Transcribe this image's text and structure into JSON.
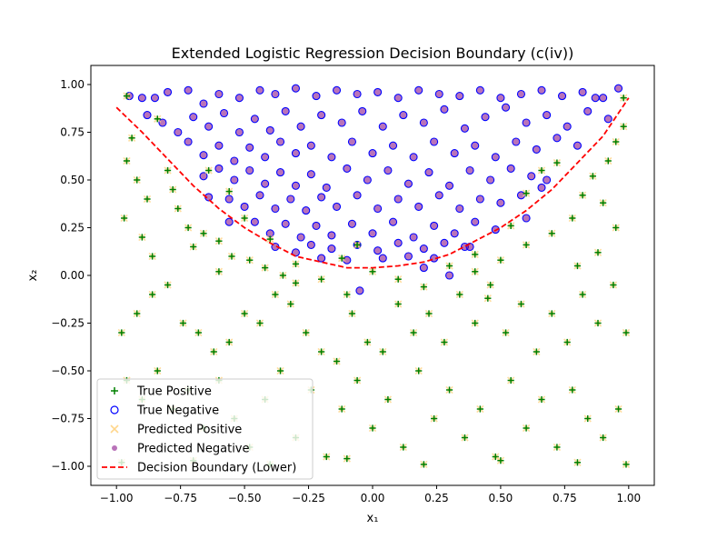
{
  "chart_data": {
    "type": "scatter",
    "title": "Extended Logistic Regression Decision Boundary (c(iv))",
    "xlabel": "x₁",
    "ylabel": "x₂",
    "xlim": [
      -1.1,
      1.1
    ],
    "ylim": [
      -1.1,
      1.1
    ],
    "xticks": [
      "−1.00",
      "−0.75",
      "−0.50",
      "−0.25",
      "0.00",
      "0.25",
      "0.50",
      "0.75",
      "1.00"
    ],
    "yticks": [
      "−1.00",
      "−0.75",
      "−0.50",
      "−0.25",
      "0.00",
      "0.25",
      "0.50",
      "0.75",
      "1.00"
    ],
    "grid": false,
    "legend_position": "lower-left",
    "legend": [
      {
        "label": "True Positive",
        "marker": "plus",
        "color": "#008000"
      },
      {
        "label": "True Negative",
        "marker": "hollow-circle",
        "color": "#0000ff"
      },
      {
        "label": "Predicted Positive",
        "marker": "x",
        "color": "#ffd27f"
      },
      {
        "label": "Predicted Negative",
        "marker": "dot",
        "color": "#7f007f"
      },
      {
        "label": "Decision Boundary (Lower)",
        "marker": "dashed-line",
        "color": "#ff0000"
      }
    ],
    "boundary": {
      "name": "Decision Boundary (Lower)",
      "x": [
        -1.0,
        -0.9,
        -0.8,
        -0.7,
        -0.6,
        -0.5,
        -0.4,
        -0.3,
        -0.2,
        -0.1,
        0.0,
        0.1,
        0.2,
        0.3,
        0.4,
        0.5,
        0.6,
        0.7,
        0.8,
        0.9,
        1.0
      ],
      "y": [
        0.88,
        0.75,
        0.61,
        0.47,
        0.35,
        0.25,
        0.17,
        0.1,
        0.07,
        0.04,
        0.04,
        0.05,
        0.07,
        0.11,
        0.18,
        0.25,
        0.34,
        0.45,
        0.59,
        0.73,
        0.93
      ]
    },
    "series": [
      {
        "name": "True Negative",
        "points": [
          [
            -0.95,
            0.94
          ],
          [
            -0.9,
            0.93
          ],
          [
            -0.85,
            0.93
          ],
          [
            -0.8,
            0.96
          ],
          [
            -0.72,
            0.97
          ],
          [
            -0.66,
            0.9
          ],
          [
            -0.6,
            0.95
          ],
          [
            -0.52,
            0.93
          ],
          [
            -0.44,
            0.97
          ],
          [
            -0.38,
            0.95
          ],
          [
            -0.3,
            0.98
          ],
          [
            -0.22,
            0.94
          ],
          [
            -0.14,
            0.97
          ],
          [
            -0.06,
            0.95
          ],
          [
            0.02,
            0.96
          ],
          [
            0.1,
            0.93
          ],
          [
            0.18,
            0.97
          ],
          [
            0.26,
            0.95
          ],
          [
            0.34,
            0.94
          ],
          [
            0.42,
            0.97
          ],
          [
            0.5,
            0.93
          ],
          [
            0.58,
            0.95
          ],
          [
            0.66,
            0.97
          ],
          [
            0.74,
            0.94
          ],
          [
            0.82,
            0.96
          ],
          [
            0.9,
            0.93
          ],
          [
            0.96,
            0.98
          ],
          [
            -0.88,
            0.84
          ],
          [
            -0.82,
            0.8
          ],
          [
            -0.76,
            0.75
          ],
          [
            -0.7,
            0.83
          ],
          [
            -0.64,
            0.78
          ],
          [
            -0.58,
            0.85
          ],
          [
            -0.52,
            0.75
          ],
          [
            -0.46,
            0.82
          ],
          [
            -0.4,
            0.76
          ],
          [
            -0.34,
            0.86
          ],
          [
            -0.28,
            0.78
          ],
          [
            -0.2,
            0.84
          ],
          [
            -0.12,
            0.8
          ],
          [
            -0.04,
            0.86
          ],
          [
            0.04,
            0.78
          ],
          [
            0.12,
            0.84
          ],
          [
            0.2,
            0.8
          ],
          [
            0.28,
            0.87
          ],
          [
            0.36,
            0.77
          ],
          [
            0.44,
            0.83
          ],
          [
            0.52,
            0.88
          ],
          [
            0.6,
            0.8
          ],
          [
            0.68,
            0.84
          ],
          [
            0.76,
            0.78
          ],
          [
            0.84,
            0.86
          ],
          [
            0.92,
            0.82
          ],
          [
            -0.72,
            0.7
          ],
          [
            -0.66,
            0.63
          ],
          [
            -0.6,
            0.68
          ],
          [
            -0.54,
            0.6
          ],
          [
            -0.48,
            0.67
          ],
          [
            -0.42,
            0.62
          ],
          [
            -0.36,
            0.7
          ],
          [
            -0.3,
            0.64
          ],
          [
            -0.24,
            0.68
          ],
          [
            -0.16,
            0.62
          ],
          [
            -0.08,
            0.7
          ],
          [
            0.0,
            0.64
          ],
          [
            0.08,
            0.68
          ],
          [
            0.16,
            0.62
          ],
          [
            0.24,
            0.7
          ],
          [
            0.32,
            0.64
          ],
          [
            0.4,
            0.68
          ],
          [
            0.48,
            0.62
          ],
          [
            0.56,
            0.7
          ],
          [
            0.64,
            0.66
          ],
          [
            0.72,
            0.72
          ],
          [
            0.8,
            0.68
          ],
          [
            -0.66,
            0.52
          ],
          [
            -0.6,
            0.56
          ],
          [
            -0.54,
            0.5
          ],
          [
            -0.48,
            0.55
          ],
          [
            -0.42,
            0.48
          ],
          [
            -0.36,
            0.54
          ],
          [
            -0.3,
            0.47
          ],
          [
            -0.24,
            0.53
          ],
          [
            -0.18,
            0.46
          ],
          [
            -0.1,
            0.56
          ],
          [
            -0.02,
            0.5
          ],
          [
            0.06,
            0.55
          ],
          [
            0.14,
            0.48
          ],
          [
            0.22,
            0.54
          ],
          [
            0.3,
            0.47
          ],
          [
            0.38,
            0.55
          ],
          [
            0.46,
            0.5
          ],
          [
            0.54,
            0.56
          ],
          [
            0.62,
            0.52
          ],
          [
            0.68,
            0.5
          ],
          [
            -0.56,
            0.4
          ],
          [
            -0.5,
            0.36
          ],
          [
            -0.44,
            0.42
          ],
          [
            -0.38,
            0.35
          ],
          [
            -0.32,
            0.4
          ],
          [
            -0.26,
            0.34
          ],
          [
            -0.2,
            0.41
          ],
          [
            -0.14,
            0.36
          ],
          [
            -0.06,
            0.42
          ],
          [
            0.02,
            0.35
          ],
          [
            0.1,
            0.4
          ],
          [
            0.18,
            0.36
          ],
          [
            0.26,
            0.42
          ],
          [
            0.34,
            0.35
          ],
          [
            0.42,
            0.4
          ],
          [
            0.5,
            0.38
          ],
          [
            0.58,
            0.42
          ],
          [
            -0.46,
            0.28
          ],
          [
            -0.4,
            0.22
          ],
          [
            -0.34,
            0.27
          ],
          [
            -0.28,
            0.2
          ],
          [
            -0.22,
            0.26
          ],
          [
            -0.16,
            0.21
          ],
          [
            -0.08,
            0.27
          ],
          [
            0.0,
            0.22
          ],
          [
            0.08,
            0.28
          ],
          [
            0.16,
            0.2
          ],
          [
            0.24,
            0.26
          ],
          [
            0.32,
            0.22
          ],
          [
            0.4,
            0.28
          ],
          [
            0.48,
            0.24
          ],
          [
            -0.38,
            0.15
          ],
          [
            -0.3,
            0.12
          ],
          [
            -0.24,
            0.16
          ],
          [
            -0.16,
            0.14
          ],
          [
            -0.06,
            0.16
          ],
          [
            0.02,
            0.13
          ],
          [
            0.1,
            0.17
          ],
          [
            0.2,
            0.14
          ],
          [
            0.28,
            0.17
          ],
          [
            0.36,
            0.15
          ],
          [
            -0.2,
            0.09
          ],
          [
            -0.1,
            0.08
          ],
          [
            0.04,
            0.09
          ],
          [
            0.14,
            0.1
          ],
          [
            0.24,
            0.09
          ],
          [
            -0.56,
            0.28
          ],
          [
            0.3,
            0.0
          ],
          [
            0.2,
            0.04
          ],
          [
            0.6,
            0.3
          ],
          [
            0.66,
            0.46
          ],
          [
            0.38,
            0.15
          ],
          [
            -0.05,
            -0.08
          ],
          [
            0.87,
            0.93
          ],
          [
            -0.64,
            0.41
          ]
        ]
      },
      {
        "name": "True Positive",
        "points": [
          [
            -0.96,
            0.94
          ],
          [
            -0.84,
            0.82
          ],
          [
            -0.64,
            0.55
          ],
          [
            -0.56,
            0.44
          ],
          [
            -0.5,
            0.3
          ],
          [
            -0.4,
            0.19
          ],
          [
            -0.12,
            0.09
          ],
          [
            -0.06,
            0.16
          ],
          [
            0.4,
            0.11
          ],
          [
            0.54,
            0.26
          ],
          [
            0.6,
            0.43
          ],
          [
            0.66,
            0.55
          ],
          [
            0.72,
            0.59
          ],
          [
            0.98,
            0.93
          ],
          [
            -0.94,
            0.72
          ],
          [
            -0.96,
            0.6
          ],
          [
            -0.92,
            0.5
          ],
          [
            -0.88,
            0.4
          ],
          [
            -0.97,
            0.3
          ],
          [
            -0.9,
            0.2
          ],
          [
            -0.8,
            0.55
          ],
          [
            -0.78,
            0.45
          ],
          [
            -0.76,
            0.35
          ],
          [
            -0.72,
            0.25
          ],
          [
            -0.7,
            0.15
          ],
          [
            -0.66,
            0.22
          ],
          [
            -0.6,
            0.18
          ],
          [
            -0.55,
            0.1
          ],
          [
            -0.48,
            0.08
          ],
          [
            -0.42,
            0.04
          ],
          [
            -0.35,
            0.0
          ],
          [
            -0.3,
            -0.04
          ],
          [
            -0.2,
            -0.02
          ],
          [
            0.1,
            -0.02
          ],
          [
            0.4,
            0.02
          ],
          [
            0.5,
            0.08
          ],
          [
            0.6,
            0.16
          ],
          [
            0.7,
            0.22
          ],
          [
            0.78,
            0.3
          ],
          [
            0.82,
            0.42
          ],
          [
            0.86,
            0.52
          ],
          [
            0.92,
            0.6
          ],
          [
            0.95,
            0.7
          ],
          [
            0.98,
            0.78
          ],
          [
            0.9,
            0.38
          ],
          [
            0.95,
            0.25
          ],
          [
            0.88,
            0.12
          ],
          [
            0.8,
            0.05
          ],
          [
            -0.98,
            -0.3
          ],
          [
            -0.92,
            -0.2
          ],
          [
            -0.86,
            -0.1
          ],
          [
            -0.8,
            -0.05
          ],
          [
            -0.74,
            -0.25
          ],
          [
            -0.68,
            -0.3
          ],
          [
            -0.62,
            -0.4
          ],
          [
            -0.56,
            -0.35
          ],
          [
            -0.5,
            -0.2
          ],
          [
            -0.44,
            -0.25
          ],
          [
            -0.38,
            -0.1
          ],
          [
            -0.32,
            -0.15
          ],
          [
            -0.26,
            -0.3
          ],
          [
            -0.2,
            -0.4
          ],
          [
            -0.14,
            -0.45
          ],
          [
            -0.08,
            -0.2
          ],
          [
            -0.02,
            -0.35
          ],
          [
            0.04,
            -0.4
          ],
          [
            0.1,
            -0.15
          ],
          [
            0.16,
            -0.3
          ],
          [
            0.22,
            -0.2
          ],
          [
            0.28,
            -0.35
          ],
          [
            0.34,
            -0.1
          ],
          [
            0.4,
            -0.25
          ],
          [
            0.46,
            -0.05
          ],
          [
            0.52,
            -0.3
          ],
          [
            0.58,
            -0.15
          ],
          [
            0.64,
            -0.4
          ],
          [
            0.7,
            -0.2
          ],
          [
            0.76,
            -0.35
          ],
          [
            0.82,
            -0.1
          ],
          [
            0.88,
            -0.25
          ],
          [
            0.94,
            -0.05
          ],
          [
            0.99,
            -0.3
          ],
          [
            -0.96,
            -0.55
          ],
          [
            -0.9,
            -0.65
          ],
          [
            -0.84,
            -0.5
          ],
          [
            -0.78,
            -0.7
          ],
          [
            -0.72,
            -0.6
          ],
          [
            -0.66,
            -0.8
          ],
          [
            -0.6,
            -0.55
          ],
          [
            -0.54,
            -0.75
          ],
          [
            -0.48,
            -0.9
          ],
          [
            -0.42,
            -0.65
          ],
          [
            -0.36,
            -0.5
          ],
          [
            -0.3,
            -0.85
          ],
          [
            -0.24,
            -0.6
          ],
          [
            -0.18,
            -0.95
          ],
          [
            -0.12,
            -0.7
          ],
          [
            -0.06,
            -0.55
          ],
          [
            0.0,
            -0.8
          ],
          [
            0.06,
            -0.65
          ],
          [
            0.12,
            -0.9
          ],
          [
            0.18,
            -0.5
          ],
          [
            0.24,
            -0.75
          ],
          [
            0.3,
            -0.6
          ],
          [
            0.36,
            -0.85
          ],
          [
            0.42,
            -0.7
          ],
          [
            0.48,
            -0.95
          ],
          [
            0.54,
            -0.55
          ],
          [
            0.6,
            -0.8
          ],
          [
            0.66,
            -0.65
          ],
          [
            0.72,
            -0.9
          ],
          [
            0.78,
            -0.6
          ],
          [
            0.84,
            -0.75
          ],
          [
            0.9,
            -0.85
          ],
          [
            0.96,
            -0.7
          ],
          [
            -0.98,
            -0.98
          ],
          [
            -0.7,
            -0.97
          ],
          [
            -0.4,
            -0.99
          ],
          [
            -0.1,
            -0.96
          ],
          [
            0.2,
            -0.99
          ],
          [
            0.5,
            -0.97
          ],
          [
            0.8,
            -0.98
          ],
          [
            0.99,
            -0.99
          ],
          [
            -0.3,
            0.06
          ],
          [
            0.0,
            0.02
          ],
          [
            0.3,
            0.05
          ],
          [
            0.2,
            -0.06
          ],
          [
            -0.1,
            -0.1
          ],
          [
            0.45,
            -0.12
          ],
          [
            -0.6,
            0.02
          ],
          [
            -0.86,
            0.1
          ]
        ]
      }
    ]
  }
}
